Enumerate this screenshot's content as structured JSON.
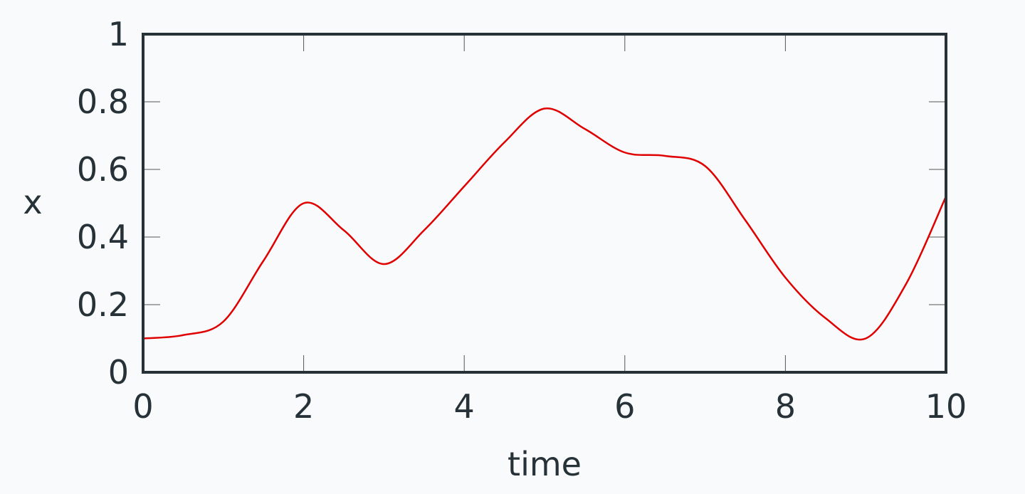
{
  "chart_data": {
    "type": "line",
    "xlabel": "time",
    "ylabel": "x",
    "xlim": [
      0,
      10
    ],
    "ylim": [
      0,
      1
    ],
    "xticks": [
      0,
      2,
      4,
      6,
      8,
      10
    ],
    "yticks": [
      0,
      0.2,
      0.4,
      0.6,
      0.8,
      1
    ],
    "xtick_labels": [
      "0",
      "2",
      "4",
      "6",
      "8",
      "10"
    ],
    "ytick_labels": [
      "0",
      "0.2",
      "0.4",
      "0.6",
      "0.8",
      "1"
    ],
    "grid": false,
    "area_closed_to_baseline": true,
    "series": [
      {
        "color": "#e00000",
        "x": [
          0,
          0.5,
          1,
          1.5,
          2,
          2.5,
          3,
          3.5,
          4,
          4.5,
          5,
          5.5,
          6,
          6.5,
          7,
          7.5,
          8,
          8.5,
          9,
          9.5,
          10
        ],
        "y": [
          0.1,
          0.11,
          0.15,
          0.33,
          0.5,
          0.42,
          0.32,
          0.42,
          0.55,
          0.68,
          0.78,
          0.72,
          0.65,
          0.64,
          0.61,
          0.45,
          0.28,
          0.16,
          0.1,
          0.26,
          0.52
        ]
      }
    ]
  },
  "colors": {
    "background": "#f9fafb",
    "frame": "#263238",
    "text": "#263238"
  }
}
